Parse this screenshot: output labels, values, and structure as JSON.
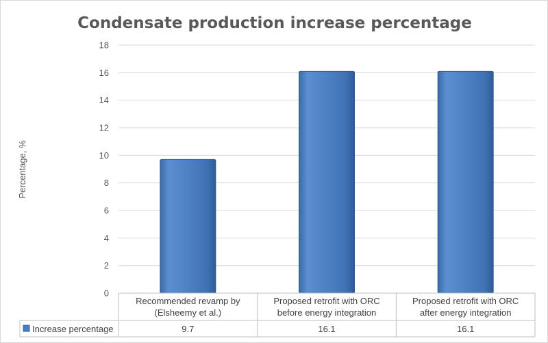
{
  "chart_data": {
    "type": "bar",
    "title": "Condensate production increase percentage",
    "ylabel": "Percentage, %",
    "xlabel": "",
    "ylim": [
      0,
      18
    ],
    "y_ticks": [
      0,
      2,
      4,
      6,
      8,
      10,
      12,
      14,
      16,
      18
    ],
    "grid": true,
    "legend_position": "data-table-left",
    "categories": [
      [
        "Recommended revamp by",
        "(Elsheemy et al.)"
      ],
      [
        "Proposed retrofit with ORC",
        "before energy integration"
      ],
      [
        "Proposed retrofit with ORC",
        "after energy integration"
      ]
    ],
    "series": [
      {
        "name": "Increase percentage",
        "values": [
          9.7,
          16.1,
          16.1
        ],
        "value_labels": [
          "9.7",
          "16.1",
          "16.1"
        ],
        "color": "#4a7ebf"
      }
    ]
  }
}
